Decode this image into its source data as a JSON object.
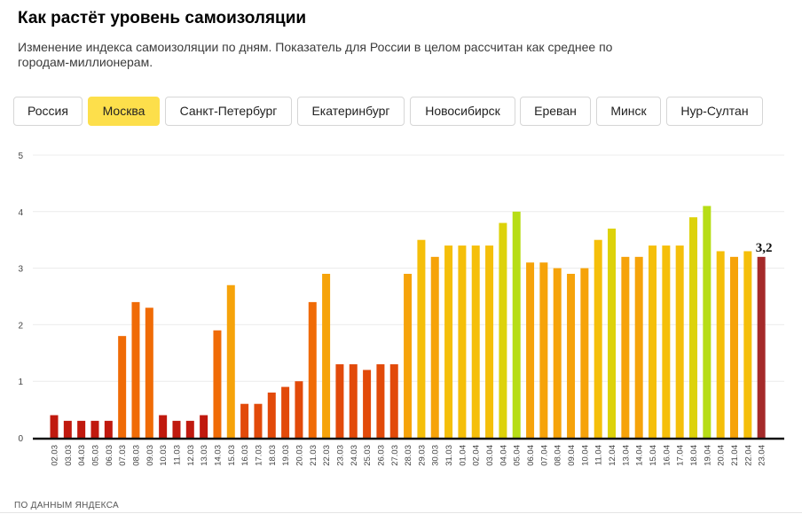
{
  "header": {
    "title": "Как растёт уровень самоизоляции",
    "subtitle": "Изменение индекса самоизоляции по дням. Показатель для России в целом рассчитан как среднее по городам-миллионерам."
  },
  "tabs": [
    {
      "label": "Россия",
      "active": false
    },
    {
      "label": "Москва",
      "active": true
    },
    {
      "label": "Санкт-Петербург",
      "active": false
    },
    {
      "label": "Екатеринбург",
      "active": false
    },
    {
      "label": "Новосибирск",
      "active": false
    },
    {
      "label": "Ереван",
      "active": false
    },
    {
      "label": "Минск",
      "active": false
    },
    {
      "label": "Нур-Султан",
      "active": false
    }
  ],
  "footer": {
    "source": "ПО ДАННЫМ ЯНДЕКСА"
  },
  "colors": {
    "active_tab": "#fddf4b",
    "last_bar": "#a52a2a",
    "scale": [
      "#c0190e",
      "#e24a0a",
      "#f06b06",
      "#f6a30a",
      "#f5bf0a",
      "#ddd20a",
      "#b7dd16"
    ]
  },
  "chart_data": {
    "type": "bar",
    "title": "",
    "xlabel": "",
    "ylabel": "",
    "ylim": [
      0,
      5
    ],
    "yticks": [
      "0",
      "1",
      "2",
      "3",
      "4",
      "5"
    ],
    "grid": true,
    "last_value_label": "3,2",
    "categories": [
      "02.03",
      "03.03",
      "04.03",
      "05.03",
      "06.03",
      "07.03",
      "08.03",
      "09.03",
      "10.03",
      "11.03",
      "12.03",
      "13.03",
      "14.03",
      "15.03",
      "16.03",
      "17.03",
      "18.03",
      "19.03",
      "20.03",
      "21.03",
      "22.03",
      "23.03",
      "24.03",
      "25.03",
      "26.03",
      "27.03",
      "28.03",
      "29.03",
      "30.03",
      "31.03",
      "01.04",
      "02.04",
      "03.04",
      "04.04",
      "05.04",
      "06.04",
      "07.04",
      "08.04",
      "09.04",
      "10.04",
      "11.04",
      "12.04",
      "13.04",
      "14.04",
      "15.04",
      "16.04",
      "17.04",
      "18.04",
      "19.04",
      "20.04",
      "21.04",
      "22.04",
      "23.04"
    ],
    "values": [
      0.4,
      0.3,
      0.3,
      0.3,
      0.3,
      1.8,
      2.4,
      2.3,
      0.4,
      0.3,
      0.3,
      0.4,
      1.9,
      2.7,
      0.6,
      0.6,
      0.8,
      0.9,
      1.0,
      2.4,
      2.9,
      1.3,
      1.3,
      1.2,
      1.3,
      1.3,
      2.9,
      3.5,
      3.2,
      3.4,
      3.4,
      3.4,
      3.4,
      3.8,
      4.0,
      3.1,
      3.1,
      3.0,
      2.9,
      3.0,
      3.5,
      3.7,
      3.2,
      3.2,
      3.4,
      3.4,
      3.4,
      3.9,
      4.1,
      3.3,
      3.2,
      3.3,
      3.2
    ]
  }
}
